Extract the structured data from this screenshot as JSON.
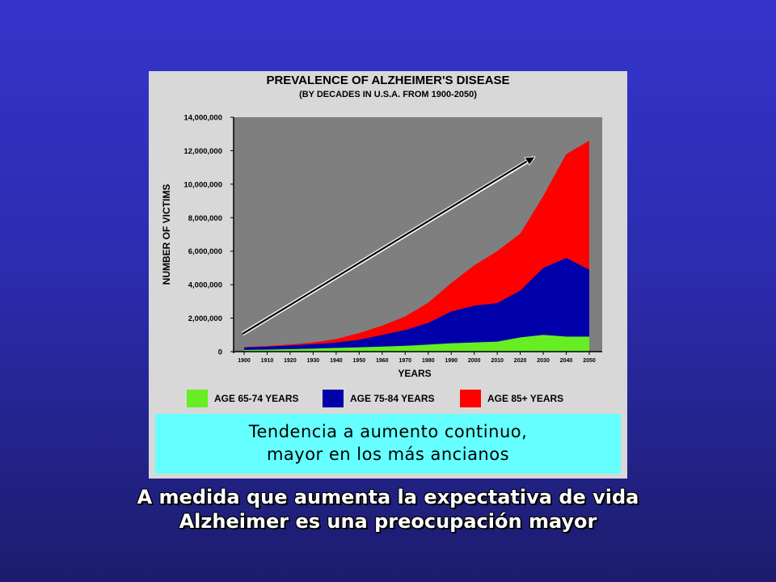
{
  "chart_data": {
    "type": "area",
    "title": "PREVALENCE OF ALZHEIMER'S DISEASE",
    "subtitle": "(BY DECADES IN U.S.A. FROM 1900-2050)",
    "xlabel": "YEARS",
    "ylabel": "NUMBER OF VICTIMS",
    "stacked": true,
    "ylim": [
      0,
      14000000
    ],
    "y_ticks": [
      "0",
      "2,000,000",
      "4,000,000",
      "6,000,000",
      "8,000,000",
      "10,000,000",
      "12,000,000",
      "14,000,000"
    ],
    "y_tick_values": [
      0,
      2000000,
      4000000,
      6000000,
      8000000,
      10000000,
      12000000,
      14000000
    ],
    "x": [
      "1900",
      "1910",
      "1920",
      "1930",
      "1940",
      "1950",
      "1960",
      "1970",
      "1980",
      "1990",
      "2000",
      "2010",
      "2020",
      "2030",
      "2040",
      "2050"
    ],
    "series": [
      {
        "name": "AGE 65-74 YEARS",
        "color": "#66ee22",
        "values": [
          100000,
          120000,
          150000,
          180000,
          220000,
          260000,
          300000,
          350000,
          420000,
          500000,
          550000,
          600000,
          850000,
          1000000,
          900000,
          900000
        ]
      },
      {
        "name": "AGE 75-84 YEARS",
        "color": "#0000aa",
        "values": [
          150000,
          180000,
          220000,
          270000,
          330000,
          450000,
          700000,
          950000,
          1300000,
          1900000,
          2200000,
          2300000,
          2800000,
          4000000,
          4700000,
          4000000
        ]
      },
      {
        "name": "AGE 85+ YEARS",
        "color": "#ff0000",
        "values": [
          30000,
          40000,
          60000,
          100000,
          200000,
          400000,
          550000,
          800000,
          1200000,
          1700000,
          2400000,
          3100000,
          3400000,
          4300000,
          6200000,
          7700000
        ]
      }
    ],
    "grid": false,
    "plot_background": "#7f7f7f",
    "legend_position": "bottom",
    "annotation": "trend-arrow"
  },
  "callout": {
    "line1": "Tendencia a aumento continuo,",
    "line2": "mayor en los más ancianos"
  },
  "caption": {
    "line1": "A medida que aumenta la expectativa de vida",
    "line2": "Alzheimer es una preocupación mayor"
  },
  "colors": {
    "background_top": "#3434cc",
    "background_bottom": "#1c1c6e",
    "callout_bg": "#66ffff",
    "caption_text": "#ffffff"
  }
}
